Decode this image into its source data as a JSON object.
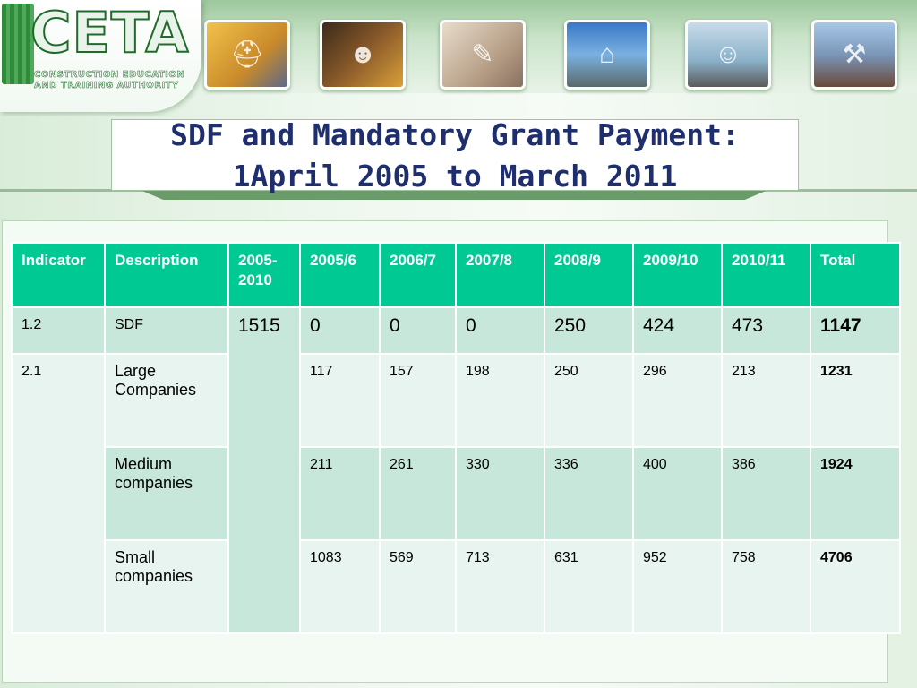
{
  "logo": {
    "name": "CETA",
    "subtitle_line1": "CONSTRUCTION EDUCATION",
    "subtitle_line2": "AND TRAINING AUTHORITY"
  },
  "photos": [
    {
      "icon": "hard-hat-photo-icon",
      "color": "#c98a2a"
    },
    {
      "icon": "worker-photo-icon",
      "color": "#6a4a2a"
    },
    {
      "icon": "drafting-tools-photo-icon",
      "color": "#b8a088"
    },
    {
      "icon": "crane-photo-icon",
      "color": "#4a88c8"
    },
    {
      "icon": "engineers-photo-icon",
      "color": "#8ab0c8"
    },
    {
      "icon": "scaffold-photo-icon",
      "color": "#7a96b8"
    }
  ],
  "title": {
    "line1": "SDF and Mandatory Grant Payment:",
    "line2": "1April 2005 to March 2011"
  },
  "table": {
    "headers": [
      "Indicator",
      "Description",
      "2005-2010",
      "2005/6",
      "2006/7",
      "2007/8",
      "2008/9",
      "2009/10",
      "2010/11",
      "Total"
    ],
    "merged_value": "1515",
    "rows": [
      {
        "indicator": "1.2",
        "description": "SDF",
        "values": [
          "0",
          "0",
          "0",
          "250",
          "424",
          "473"
        ],
        "total": "1147"
      },
      {
        "indicator": "2.1",
        "description": "Large Companies",
        "values": [
          "117",
          "157",
          "198",
          "250",
          "296",
          "213"
        ],
        "total": "1231"
      },
      {
        "indicator": "",
        "description": "Medium companies",
        "values": [
          "211",
          "261",
          "330",
          "336",
          "400",
          "386"
        ],
        "total": "1924"
      },
      {
        "indicator": "",
        "description": "Small companies",
        "values": [
          "1083",
          "569",
          "713",
          "631",
          "952",
          "758"
        ],
        "total": "4706"
      }
    ]
  }
}
